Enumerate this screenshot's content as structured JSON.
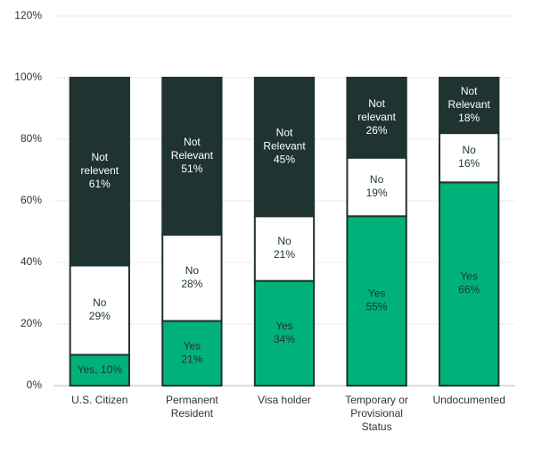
{
  "chart_data": {
    "type": "stacked_bar",
    "categories": [
      "U.S. Citizen",
      "Permanent Resident",
      "Visa holder",
      "Temporary or Provisional Status",
      "Undocumented"
    ],
    "series": [
      {
        "color": "#00b27a",
        "label_color": "#1f3330",
        "values": [
          10,
          21,
          34,
          55,
          66
        ],
        "value_labels": [
          "Yes, 10%",
          "Yes\n21%",
          "Yes\n34%",
          "Yes\n55%",
          "Yes\n66%"
        ]
      },
      {
        "color": "#ffffff",
        "label_color": "#1f3330",
        "values": [
          29,
          28,
          21,
          19,
          16
        ],
        "value_labels": [
          "No\n29%",
          "No\n28%",
          "No\n21%",
          "No\n19%",
          "No\n16%"
        ]
      },
      {
        "color": "#1f3330",
        "label_color": "#ffffff",
        "values": [
          61,
          51,
          45,
          26,
          18
        ],
        "value_labels": [
          "Not\nrelevent\n61%",
          "Not\nRelevant\n51%",
          "Not\nRelevant\n45%",
          "Not\nrelevant\n26%",
          "Not\nRelevant\n18%"
        ]
      }
    ],
    "ylim": [
      0,
      120
    ],
    "yticks": [
      {
        "value": 0,
        "label": "0%"
      },
      {
        "value": 20,
        "label": "20%"
      },
      {
        "value": 40,
        "label": "40%"
      },
      {
        "value": 60,
        "label": "60%"
      },
      {
        "value": 80,
        "label": "80%"
      },
      {
        "value": 100,
        "label": "100%"
      },
      {
        "value": 120,
        "label": "120%"
      }
    ],
    "grid": true
  }
}
